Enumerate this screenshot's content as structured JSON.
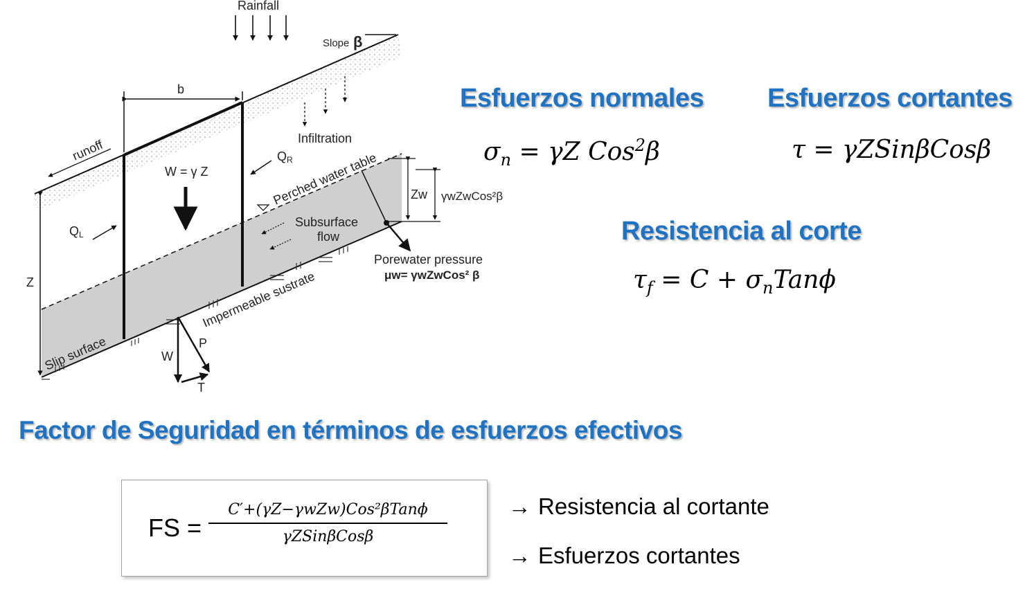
{
  "diagram": {
    "rainfall": "Rainfall",
    "slope": "Slope",
    "beta": "β",
    "b": "b",
    "runoff": "runoff",
    "infiltration": "Infiltration",
    "weight": "W = γ Z",
    "qr": "Q",
    "qr_sub": "R",
    "ql": "Q",
    "ql_sub": "L",
    "perched": "Perched water table",
    "subsurface1": "Subsurface",
    "subsurface2": "flow",
    "zw": "Zw",
    "gamma_expr": "γwZwCos²β",
    "porewater": "Porewater pressure",
    "mu_expr": "μw= γwZwCos² β",
    "z": "Z",
    "impermeable": "Impermeable sustrate",
    "slip": "Slip surface",
    "p": "P",
    "w": "W",
    "t": "T"
  },
  "headings": {
    "normales": "Esfuerzos normales",
    "cortantes": "Esfuerzos cortantes",
    "resistencia": "Resistencia al corte",
    "factor": "Factor de Seguridad en términos de esfuerzos efectivos"
  },
  "equations": {
    "normal": {
      "lhs": "σ",
      "sub": "n",
      "mid": " = γZ Cos",
      "sup": "2",
      "end": "β"
    },
    "shear": "τ =  γZSinβCosβ",
    "resist": {
      "pre": "τ",
      "sub": "f",
      "mid": " = C +  σ",
      "sub2": "n",
      "end": "Tanϕ"
    }
  },
  "fs": {
    "label": "FS =",
    "numerator": "C′+(γZ−γwZw)Cos²βTanϕ",
    "denominator": "γZSinβCosβ"
  },
  "notes": {
    "arrow": "→",
    "resistencia": "Resistencia al cortante",
    "cortantes": "Esfuerzos cortantes"
  }
}
